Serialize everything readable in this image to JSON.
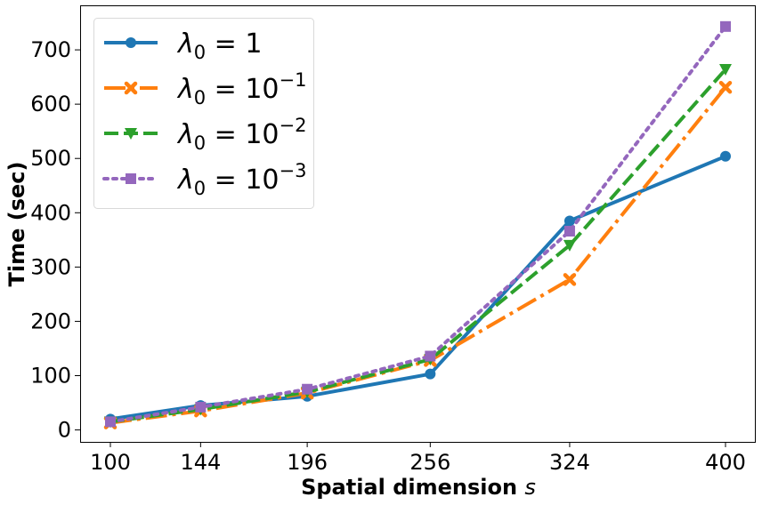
{
  "chart_data": {
    "type": "line",
    "x": [
      100,
      144,
      196,
      256,
      324,
      400
    ],
    "x_tick_labels": [
      "100",
      "144",
      "196",
      "256",
      "324",
      "400"
    ],
    "y_ticks": [
      0,
      100,
      200,
      300,
      400,
      500,
      600,
      700
    ],
    "y_tick_labels": [
      "0",
      "100",
      "200",
      "300",
      "400",
      "500",
      "600",
      "700"
    ],
    "ylim": [
      -22,
      782
    ],
    "xlabel_main": "Spatial dimension ",
    "xlabel_var": "s",
    "ylabel": "Time (sec)",
    "grid": false,
    "legend_position": "top-left",
    "series": [
      {
        "legend": {
          "base": "λ",
          "sub": "0",
          "eq": " = ",
          "num": "1",
          "sup": ""
        },
        "values": [
          20,
          45,
          62,
          103,
          385,
          504
        ],
        "color": "#1f77b4",
        "linestyle": "solid",
        "marker": "circle"
      },
      {
        "legend": {
          "base": "λ",
          "sub": "0",
          "eq": " = ",
          "num": "10",
          "sup": "−1"
        },
        "values": [
          13,
          35,
          68,
          128,
          277,
          631
        ],
        "color": "#ff7f0e",
        "linestyle": "dashdot",
        "marker": "x"
      },
      {
        "legend": {
          "base": "λ",
          "sub": "0",
          "eq": " = ",
          "num": "10",
          "sup": "−2"
        },
        "values": [
          15,
          38,
          70,
          130,
          340,
          664
        ],
        "color": "#2ca02c",
        "linestyle": "dashed",
        "marker": "triangle-down"
      },
      {
        "legend": {
          "base": "λ",
          "sub": "0",
          "eq": " = ",
          "num": "10",
          "sup": "−3"
        },
        "values": [
          15,
          42,
          75,
          136,
          366,
          743
        ],
        "color": "#9467bd",
        "linestyle": "dotted",
        "marker": "square"
      }
    ]
  }
}
